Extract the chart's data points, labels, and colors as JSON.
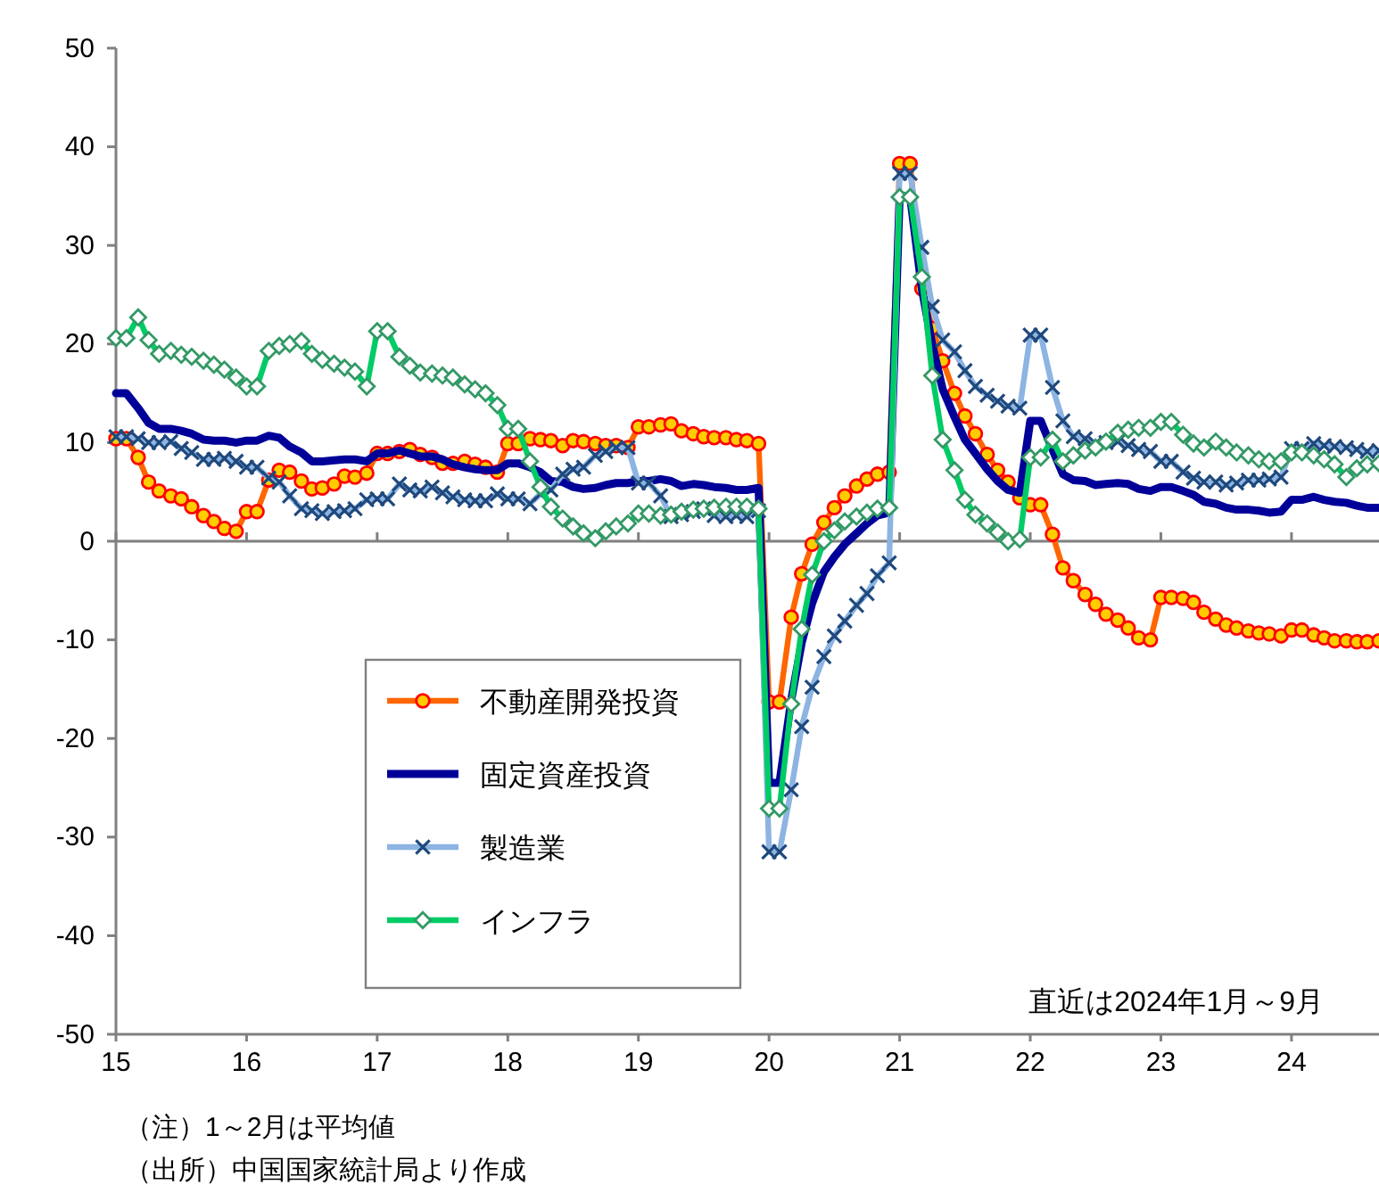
{
  "chart_data": {
    "type": "line",
    "x": [
      15,
      15.08,
      15.17,
      15.25,
      15.33,
      15.42,
      15.5,
      15.58,
      15.67,
      15.75,
      15.83,
      15.92,
      16,
      16.08,
      16.17,
      16.25,
      16.33,
      16.42,
      16.5,
      16.58,
      16.67,
      16.75,
      16.83,
      16.92,
      17,
      17.08,
      17.17,
      17.25,
      17.33,
      17.42,
      17.5,
      17.58,
      17.67,
      17.75,
      17.83,
      17.92,
      18,
      18.08,
      18.17,
      18.25,
      18.33,
      18.42,
      18.5,
      18.58,
      18.67,
      18.75,
      18.83,
      18.92,
      19,
      19.08,
      19.17,
      19.25,
      19.33,
      19.42,
      19.5,
      19.58,
      19.67,
      19.75,
      19.83,
      19.92,
      20,
      20.08,
      20.17,
      20.25,
      20.33,
      20.42,
      20.5,
      20.58,
      20.67,
      20.75,
      20.83,
      20.92,
      21,
      21.08,
      21.17,
      21.25,
      21.33,
      21.42,
      21.5,
      21.58,
      21.67,
      21.75,
      21.83,
      21.92,
      22,
      22.08,
      22.17,
      22.25,
      22.33,
      22.42,
      22.5,
      22.58,
      22.67,
      22.75,
      22.83,
      22.92,
      23,
      23.08,
      23.17,
      23.25,
      23.33,
      23.42,
      23.5,
      23.58,
      23.67,
      23.75,
      23.83,
      23.92,
      24,
      24.08,
      24.17,
      24.25,
      24.33,
      24.42,
      24.5,
      24.58,
      24.67
    ],
    "xlim": [
      15,
      24.67
    ],
    "xticks": [
      15,
      16,
      17,
      18,
      19,
      20,
      21,
      22,
      23,
      24
    ],
    "ylim": [
      -50,
      50
    ],
    "yticks": [
      -50,
      -40,
      -30,
      -20,
      -10,
      0,
      10,
      20,
      30,
      40,
      50
    ],
    "ref_lines": [
      {
        "axis": "y",
        "value": 0,
        "color": "#808080"
      }
    ],
    "legend": "bottom left",
    "series": [
      {
        "name": "不動産開発投資",
        "color": "#ff6600",
        "marker": "circle",
        "values": [
          10.4,
          10.4,
          8.5,
          6.0,
          5.1,
          4.6,
          4.3,
          3.5,
          2.6,
          2.0,
          1.3,
          1.0,
          3.0,
          3.0,
          6.2,
          7.2,
          7.0,
          6.1,
          5.3,
          5.4,
          5.8,
          6.6,
          6.5,
          6.9,
          8.9,
          8.9,
          9.1,
          9.3,
          8.8,
          8.5,
          7.9,
          7.9,
          8.1,
          7.8,
          7.5,
          7.0,
          9.9,
          9.9,
          10.4,
          10.3,
          10.2,
          9.7,
          10.2,
          10.1,
          9.9,
          9.7,
          9.7,
          9.5,
          11.6,
          11.6,
          11.8,
          11.9,
          11.2,
          10.9,
          10.6,
          10.5,
          10.5,
          10.3,
          10.2,
          9.9,
          -16.3,
          -16.3,
          -7.7,
          -3.3,
          -0.3,
          1.9,
          3.4,
          4.6,
          5.6,
          6.3,
          6.8,
          7.0,
          38.3,
          38.3,
          25.6,
          21.6,
          18.3,
          15.0,
          12.7,
          10.9,
          8.8,
          7.2,
          6.0,
          4.4,
          3.7,
          3.7,
          0.7,
          -2.7,
          -4.0,
          -5.4,
          -6.4,
          -7.4,
          -8.0,
          -8.8,
          -9.8,
          -10.0,
          -5.7,
          -5.7,
          -5.8,
          -6.2,
          -7.2,
          -7.9,
          -8.5,
          -8.8,
          -9.1,
          -9.3,
          -9.4,
          -9.6,
          -9.0,
          -9.0,
          -9.5,
          -9.8,
          -10.1,
          -10.1,
          -10.2,
          -10.2,
          -10.1
        ]
      },
      {
        "name": "固定資産投資",
        "color": "#000099",
        "marker": "none",
        "values": [
          15.0,
          15.0,
          13.5,
          12.0,
          11.4,
          11.4,
          11.2,
          10.9,
          10.3,
          10.2,
          10.2,
          10.0,
          10.2,
          10.2,
          10.7,
          10.5,
          9.6,
          9.0,
          8.1,
          8.1,
          8.2,
          8.3,
          8.3,
          8.1,
          8.9,
          8.9,
          9.2,
          8.9,
          8.6,
          8.6,
          8.3,
          7.8,
          7.5,
          7.3,
          7.2,
          7.2,
          7.9,
          7.9,
          7.5,
          7.0,
          6.1,
          6.0,
          5.5,
          5.3,
          5.4,
          5.7,
          5.9,
          5.9,
          6.1,
          6.1,
          6.3,
          6.1,
          5.6,
          5.8,
          5.7,
          5.5,
          5.4,
          5.2,
          5.2,
          5.4,
          -24.5,
          -24.5,
          -16.1,
          -10.3,
          -6.3,
          -3.1,
          -1.6,
          -0.3,
          0.8,
          1.8,
          2.6,
          2.9,
          35.0,
          35.0,
          25.6,
          19.9,
          15.4,
          12.6,
          10.3,
          8.9,
          7.3,
          6.1,
          5.2,
          4.9,
          12.2,
          12.2,
          9.3,
          6.8,
          6.2,
          6.1,
          5.7,
          5.8,
          5.9,
          5.8,
          5.3,
          5.1,
          5.5,
          5.5,
          5.1,
          4.7,
          4.0,
          3.8,
          3.4,
          3.2,
          3.2,
          3.1,
          2.9,
          3.0,
          4.2,
          4.2,
          4.5,
          4.2,
          4.0,
          3.9,
          3.6,
          3.4,
          3.4
        ]
      },
      {
        "name": "製造業",
        "color": "#8db4e2",
        "marker": "cross",
        "values": [
          10.6,
          10.6,
          10.4,
          10.0,
          10.0,
          10.1,
          9.4,
          9.0,
          8.3,
          8.3,
          8.4,
          8.1,
          7.5,
          7.5,
          6.4,
          6.0,
          4.6,
          3.3,
          3.1,
          2.8,
          3.0,
          3.1,
          3.3,
          4.2,
          4.3,
          4.3,
          5.8,
          5.2,
          5.1,
          5.5,
          4.9,
          4.5,
          4.2,
          4.1,
          4.1,
          4.8,
          4.3,
          4.3,
          3.8,
          4.8,
          5.2,
          6.8,
          7.3,
          7.5,
          8.7,
          9.1,
          9.5,
          9.5,
          5.9,
          5.9,
          4.6,
          2.5,
          2.7,
          3.0,
          3.3,
          2.6,
          2.5,
          2.6,
          2.5,
          3.1,
          -31.5,
          -31.5,
          -25.2,
          -18.8,
          -14.8,
          -11.7,
          -9.6,
          -8.1,
          -6.5,
          -5.3,
          -3.5,
          -2.2,
          37.3,
          37.3,
          29.8,
          23.8,
          20.4,
          19.2,
          17.3,
          15.7,
          14.8,
          14.2,
          13.7,
          13.5,
          20.9,
          20.9,
          15.6,
          12.2,
          10.6,
          10.4,
          9.9,
          10.0,
          10.1,
          9.7,
          9.3,
          9.1,
          8.1,
          8.1,
          7.0,
          6.4,
          6.0,
          6.0,
          5.7,
          5.9,
          6.2,
          6.2,
          6.3,
          6.5,
          9.4,
          9.4,
          9.9,
          9.7,
          9.6,
          9.5,
          9.3,
          9.1,
          9.2
        ]
      },
      {
        "name": "インフラ",
        "color": "#00cc66",
        "marker": "diamond",
        "values": [
          20.6,
          20.6,
          22.7,
          20.4,
          19.0,
          19.3,
          18.9,
          18.7,
          18.3,
          17.9,
          17.4,
          16.6,
          15.7,
          15.7,
          19.3,
          19.8,
          20.0,
          20.3,
          19.0,
          18.4,
          18.0,
          17.6,
          17.2,
          15.7,
          21.3,
          21.3,
          18.7,
          17.8,
          17.1,
          17.0,
          16.8,
          16.6,
          15.9,
          15.4,
          15.0,
          13.8,
          11.4,
          11.4,
          8.1,
          5.5,
          3.5,
          2.3,
          1.5,
          0.8,
          0.3,
          1.0,
          1.5,
          1.8,
          2.8,
          2.8,
          2.6,
          2.7,
          3.0,
          3.2,
          3.3,
          3.4,
          3.5,
          3.5,
          3.5,
          3.3,
          -27.1,
          -27.1,
          -16.5,
          -8.9,
          -3.4,
          0.0,
          1.1,
          2.0,
          2.5,
          2.9,
          3.3,
          3.4,
          34.9,
          34.9,
          26.8,
          16.8,
          10.3,
          7.2,
          4.2,
          2.7,
          1.8,
          0.9,
          0.0,
          0.2,
          8.5,
          8.5,
          10.3,
          8.1,
          8.7,
          9.2,
          9.5,
          10.1,
          11.0,
          11.3,
          11.5,
          11.5,
          12.1,
          12.1,
          10.8,
          9.9,
          9.5,
          10.1,
          9.5,
          9.0,
          8.7,
          8.3,
          8.1,
          8.1,
          9.0,
          9.0,
          8.7,
          8.3,
          7.8,
          6.5,
          7.4,
          7.8,
          7.9
        ]
      }
    ],
    "annotations": [
      "直近は2024年1月～9月",
      "（注）1～2月は平均値",
      "（出所）中国国家統計局より作成"
    ]
  }
}
